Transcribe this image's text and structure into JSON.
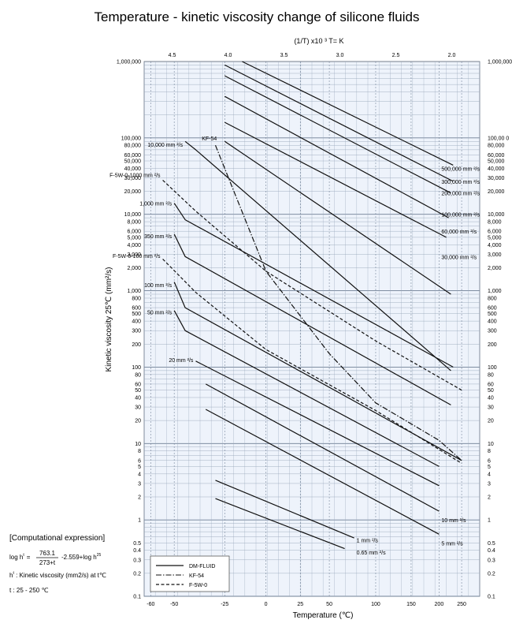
{
  "chart_data": {
    "type": "line",
    "title": "Temperature - kinetic viscosity change of silicone fluids",
    "top_axis_label": "(1/T) x10 ³  T= K",
    "xlabel": "Temperature (℃)",
    "ylabel": "Kinetic viscosity 25℃ (mm²/s)",
    "y_scale": "log",
    "ylim": [
      0.1,
      1000000
    ],
    "xlim_reciprocal_temperature": [
      4.75,
      1.75
    ],
    "x_ticks": [
      "-60",
      "-50",
      "-25",
      "0",
      "25",
      "50",
      "100",
      "150",
      "200",
      "250"
    ],
    "top_ticks": [
      "4.5",
      "4.0",
      "3.5",
      "3.0",
      "2.5",
      "2.0"
    ],
    "y_tick_labels_left": [
      "1,000,000",
      "100,000",
      "80,000",
      "60,000",
      "50,000",
      "40,000",
      "30,000",
      "20,000",
      "10,000",
      "8,000",
      "6,000",
      "5,000",
      "4,000",
      "3,000",
      "2,000",
      "1,000",
      "800",
      "600",
      "500",
      "400",
      "300",
      "200",
      "100",
      "80",
      "60",
      "50",
      "40",
      "30",
      "20",
      "10",
      "8",
      "6",
      "5",
      "4",
      "3",
      "2",
      "1",
      "0.5",
      "0.4",
      "0.3",
      "0.2",
      "0.1"
    ],
    "y_tick_labels_right": [
      "1,000,000",
      "100,00 0",
      "80,000",
      "60,000",
      "50,000",
      "40,000",
      "30,000",
      "20,000",
      "10,000",
      "8,000",
      "6,000",
      "5,000",
      "4,000",
      "3,000",
      "2,000",
      "1,000",
      "800",
      "600",
      "500",
      "400",
      "300",
      "200",
      "100",
      "80",
      "60",
      "50",
      "40",
      "30",
      "20",
      "10",
      "8",
      "6",
      "5",
      "4",
      "3",
      "2",
      "1",
      "0.5",
      "0.4",
      "0.3",
      "0.2",
      "0.1"
    ],
    "legend": [
      "DM-FLUID",
      "KF-54",
      "F-5W-0"
    ],
    "legend_position": "bottom-left",
    "grid": true,
    "series": [
      {
        "name": "500,000 mm 2/s",
        "group": "DM-FLUID",
        "x": [
          -15,
          230
        ],
        "y": [
          1000000,
          44000
        ]
      },
      {
        "name": "300,000 mm 2/s",
        "group": "DM-FLUID",
        "x": [
          -25,
          230
        ],
        "y": [
          900000,
          27000
        ]
      },
      {
        "name": "200,000 mm 2/s",
        "group": "DM-FLUID",
        "x": [
          -25,
          225
        ],
        "y": [
          650000,
          19000
        ]
      },
      {
        "name": "100,000 mm 2/s",
        "group": "DM-FLUID",
        "x": [
          -25,
          220
        ],
        "y": [
          350000,
          9000
        ]
      },
      {
        "name": "60,000 mm 2/s",
        "group": "DM-FLUID",
        "x": [
          -25,
          215
        ],
        "y": [
          160000,
          5000
        ]
      },
      {
        "name": "30,000 mm 2/s",
        "group": "DM-FLUID",
        "x": [
          -25,
          225
        ],
        "y": [
          90000,
          900
        ]
      },
      {
        "name": "10,000 mm 2/s",
        "group": "DM-FLUID",
        "x": [
          -45,
          -40,
          225
        ],
        "y": [
          90000,
          70000,
          90
        ]
      },
      {
        "name": "F-5W-0-1000 mm 2/s",
        "group": "F-5W-0",
        "x": [
          -55,
          -40,
          0,
          100,
          250
        ],
        "y": [
          28000,
          11000,
          1800,
          220,
          50
        ]
      },
      {
        "name": "1,000 mm 2/s",
        "group": "DM-FLUID",
        "x": [
          -50,
          -45,
          230
        ],
        "y": [
          14000,
          8500,
          100
        ]
      },
      {
        "name": "350 mm 2/s",
        "group": "DM-FLUID",
        "x": [
          -50,
          -45,
          225
        ],
        "y": [
          5500,
          2800,
          32
        ]
      },
      {
        "name": "F-5W-0-100 mm 2/s",
        "group": "F-5W-0",
        "x": [
          -55,
          -40,
          0,
          100,
          250
        ],
        "y": [
          2600,
          950,
          170,
          27,
          5.5
        ]
      },
      {
        "name": "100 mm 2/s",
        "group": "DM-FLUID",
        "x": [
          -50,
          -45,
          250
        ],
        "y": [
          1300,
          600,
          6.0
        ]
      },
      {
        "name": "50 mm 2/s",
        "group": "DM-FLUID",
        "x": [
          -50,
          -45,
          200
        ],
        "y": [
          550,
          300,
          5.0
        ]
      },
      {
        "name": "20 mm 2/s",
        "group": "DM-FLUID",
        "x": [
          -40,
          200
        ],
        "y": [
          120,
          2.8
        ]
      },
      {
        "name": "10 mm 2/s",
        "group": "DM-FLUID",
        "x": [
          -35,
          200
        ],
        "y": [
          60,
          1.3
        ]
      },
      {
        "name": "5 mm 2/s",
        "group": "DM-FLUID",
        "x": [
          -35,
          200
        ],
        "y": [
          28,
          0.65
        ]
      },
      {
        "name": "1 mm 2/s",
        "group": "DM-FLUID",
        "x": [
          -30,
          75
        ],
        "y": [
          3.3,
          0.58
        ]
      },
      {
        "name": "0.65 mm 2/s",
        "group": "DM-FLUID",
        "x": [
          -30,
          65
        ],
        "y": [
          1.9,
          0.42
        ]
      },
      {
        "name": "KF-54",
        "group": "KF-54",
        "x": [
          -30,
          0,
          50,
          100,
          200,
          250
        ],
        "y": [
          80000,
          1800,
          150,
          34,
          11,
          6
        ]
      }
    ],
    "series_labels": [
      {
        "text": "500,000 mm ²/s",
        "x": 200,
        "y": 40000
      },
      {
        "text": "300,000 mm ²/s",
        "x": 200,
        "y": 27000
      },
      {
        "text": "200,000 mm ²/s",
        "x": 200,
        "y": 19000
      },
      {
        "text": "100,000 mm ²/s",
        "x": 200,
        "y": 10000
      },
      {
        "text": "60,000 mm ²/s",
        "x": 200,
        "y": 6000
      },
      {
        "text": "30,000 mm ²/s",
        "x": 200,
        "y": 2800
      },
      {
        "text": "10,000 mm ²/s",
        "x": -45,
        "y": 82000,
        "side": "left"
      },
      {
        "text": "KF-54",
        "x": -28,
        "y": 100000,
        "side": "left"
      },
      {
        "text": "F-5W-0-1000 mm ²/s",
        "x": -55,
        "y": 33000,
        "side": "left"
      },
      {
        "text": "1,000 mm ²/s",
        "x": -50,
        "y": 14000,
        "side": "left"
      },
      {
        "text": "350 mm ²/s",
        "x": -50,
        "y": 5200,
        "side": "left"
      },
      {
        "text": "F-5W-0-100 mm ²/s",
        "x": -55,
        "y": 2900,
        "side": "left"
      },
      {
        "text": "100 mm ²/s",
        "x": -50,
        "y": 1200,
        "side": "left"
      },
      {
        "text": "50 mm ²/s",
        "x": -50,
        "y": 530,
        "side": "left"
      },
      {
        "text": "20 mm ²/s",
        "x": -40,
        "y": 125,
        "side": "left"
      },
      {
        "text": "10 mm ²/s",
        "x": 200,
        "y": 1.0
      },
      {
        "text": "5 mm ²/s",
        "x": 200,
        "y": 0.5
      },
      {
        "text": "1 mm ²/s",
        "x": 75,
        "y": 0.55
      },
      {
        "text": "0.65 mm ²/s",
        "x": 75,
        "y": 0.38
      }
    ]
  },
  "formula": {
    "heading": "[Computational expression]",
    "lhs": "log h",
    "lhs_sup": "t",
    "equals": "=",
    "numerator": "763.1",
    "denominator": "273+t",
    "rest": "-2.559+log h",
    "rest_sup": "25",
    "definition_sym": "h",
    "definition_sup": "t",
    "definition": " : Kinetic viscosity (mm2/s) at t℃",
    "range": "t : 25 - 250 ℃"
  },
  "colors": {
    "plot_bg": "#eef3fb",
    "grid_major": "#6f7f95",
    "grid_minor": "#9aa8bb",
    "line": "#111111"
  }
}
